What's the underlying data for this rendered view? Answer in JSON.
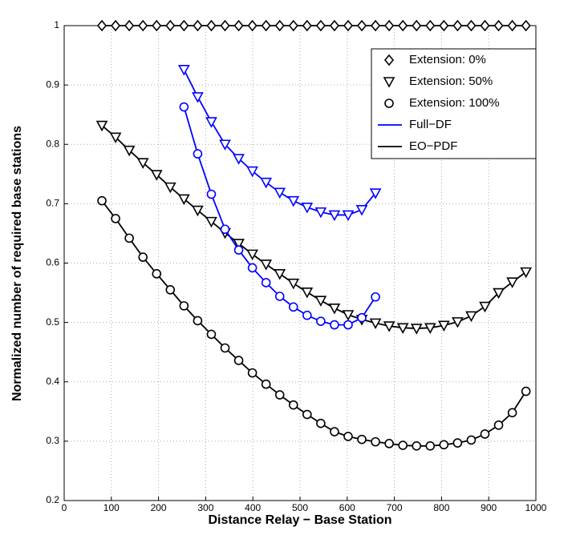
{
  "chart_data": {
    "type": "line",
    "xlabel": "Distance Relay − Base Station",
    "ylabel": "Normalized number of required base stations",
    "xlim": [
      0,
      1000
    ],
    "xticks": [
      0,
      100,
      200,
      300,
      400,
      500,
      600,
      700,
      800,
      900,
      1000
    ],
    "ylim": [
      0.2,
      1
    ],
    "yticks": [
      0.2,
      0.3,
      0.4,
      0.5,
      0.6,
      0.7,
      0.8,
      0.9,
      1
    ],
    "grid": true,
    "series": [
      {
        "color": "#000000",
        "marker": "diamond",
        "x": [
          80,
          109,
          138,
          167,
          196,
          225,
          254,
          283,
          312,
          341,
          370,
          399,
          428,
          457,
          486,
          515,
          544,
          573,
          602,
          631,
          660,
          689,
          718,
          747,
          776,
          805,
          834,
          863,
          892,
          921,
          950,
          979
        ],
        "values": [
          1,
          1,
          1,
          1,
          1,
          1,
          1,
          1,
          1,
          1,
          1,
          1,
          1,
          1,
          1,
          1,
          1,
          1,
          1,
          1,
          1,
          1,
          1,
          1,
          1,
          1,
          1,
          1,
          1,
          1,
          1,
          1
        ]
      },
      {
        "color": "#000000",
        "marker": "triangle",
        "x": [
          80,
          109,
          138,
          167,
          196,
          225,
          254,
          283,
          312,
          341,
          370,
          399,
          428,
          457,
          486,
          515,
          544,
          573,
          602,
          631,
          660,
          689,
          718,
          747,
          776,
          805,
          834,
          863,
          892,
          921,
          950,
          979
        ],
        "values": [
          0.832,
          0.812,
          0.79,
          0.769,
          0.749,
          0.728,
          0.708,
          0.689,
          0.67,
          0.651,
          0.633,
          0.615,
          0.598,
          0.582,
          0.566,
          0.551,
          0.537,
          0.524,
          0.513,
          0.505,
          0.499,
          0.494,
          0.491,
          0.49,
          0.491,
          0.495,
          0.501,
          0.511,
          0.527,
          0.55,
          0.568,
          0.585
        ]
      },
      {
        "color": "#000000",
        "marker": "circle",
        "x": [
          80,
          109,
          138,
          167,
          196,
          225,
          254,
          283,
          312,
          341,
          370,
          399,
          428,
          457,
          486,
          515,
          544,
          573,
          602,
          631,
          660,
          689,
          718,
          747,
          776,
          805,
          834,
          863,
          892,
          921,
          950,
          979
        ],
        "values": [
          0.705,
          0.675,
          0.642,
          0.61,
          0.582,
          0.555,
          0.528,
          0.503,
          0.48,
          0.457,
          0.436,
          0.415,
          0.396,
          0.378,
          0.361,
          0.345,
          0.33,
          0.316,
          0.308,
          0.303,
          0.299,
          0.296,
          0.293,
          0.292,
          0.292,
          0.294,
          0.297,
          0.302,
          0.312,
          0.327,
          0.348,
          0.384
        ]
      },
      {
        "color": "#0000ff",
        "marker": "triangle",
        "x": [
          254,
          283,
          312,
          341,
          370,
          399,
          428,
          457,
          486,
          515,
          544,
          573,
          602,
          631,
          660
        ],
        "values": [
          0.926,
          0.88,
          0.838,
          0.8,
          0.776,
          0.755,
          0.736,
          0.719,
          0.705,
          0.694,
          0.686,
          0.681,
          0.681,
          0.69,
          0.718
        ]
      },
      {
        "color": "#0000ff",
        "marker": "circle",
        "x": [
          254,
          283,
          312,
          341,
          370,
          399,
          428,
          457,
          486,
          515,
          544,
          573,
          602,
          631,
          660
        ],
        "values": [
          0.863,
          0.784,
          0.716,
          0.657,
          0.622,
          0.592,
          0.567,
          0.544,
          0.526,
          0.512,
          0.502,
          0.496,
          0.496,
          0.508,
          0.543
        ]
      }
    ],
    "legend": [
      {
        "label": "Extension: 0%",
        "marker": "diamond"
      },
      {
        "label": "Extension: 50%",
        "marker": "triangle"
      },
      {
        "label": "Extension: 100%",
        "marker": "circle"
      },
      {
        "label": "Full−DF",
        "color": "#0000ff"
      },
      {
        "label": "EO−PDF",
        "color": "#000000"
      }
    ]
  }
}
